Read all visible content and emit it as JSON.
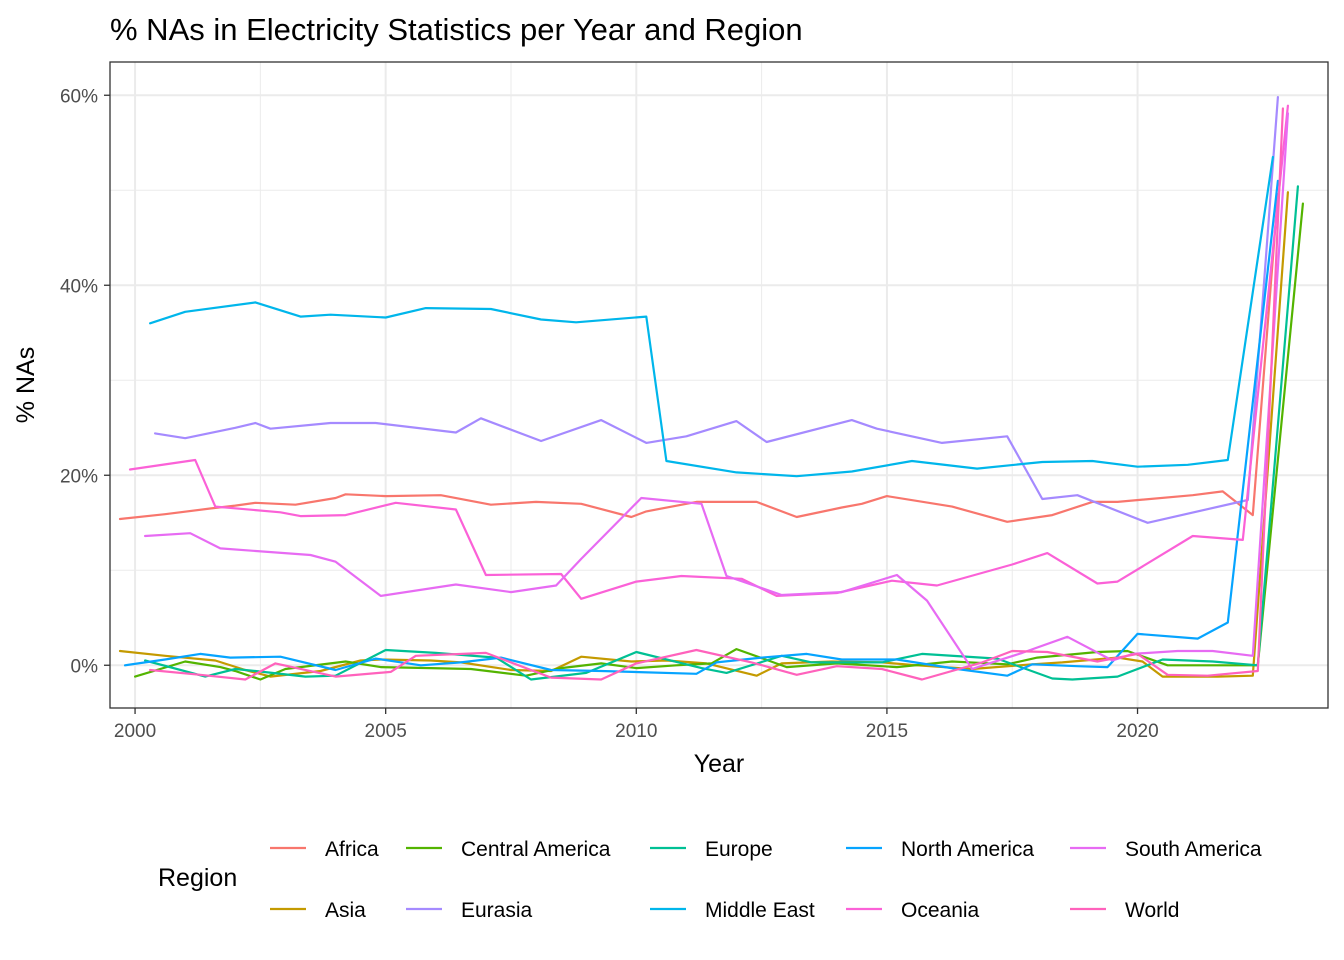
{
  "chart_data": {
    "type": "line",
    "title": "% NAs in Electricity Statistics per Year and Region",
    "xlabel": "Year",
    "ylabel": "% NAs",
    "xlim": [
      1999.5,
      2023.8
    ],
    "ylim": [
      -4.5,
      63.5
    ],
    "x_ticks": [
      2000,
      2005,
      2010,
      2015,
      2020
    ],
    "x_tick_labels": [
      "2000",
      "2005",
      "2010",
      "2015",
      "2020"
    ],
    "y_ticks": [
      0,
      20,
      40,
      60
    ],
    "y_tick_labels": [
      "0%",
      "20%",
      "40%",
      "60%"
    ],
    "grid": true,
    "legend_title": "Region",
    "legend_position": "bottom",
    "series": [
      {
        "name": "Africa",
        "color": "#F8766D",
        "points": [
          [
            1999.7,
            15.4
          ],
          [
            2000.6,
            15.9
          ],
          [
            2001.5,
            16.5
          ],
          [
            2002.0,
            16.8
          ],
          [
            2002.4,
            17.1
          ],
          [
            2003.2,
            16.9
          ],
          [
            2004.0,
            17.6
          ],
          [
            2004.2,
            18.0
          ],
          [
            2005.0,
            17.8
          ],
          [
            2006.1,
            17.9
          ],
          [
            2007.1,
            16.9
          ],
          [
            2008.0,
            17.2
          ],
          [
            2008.9,
            17.0
          ],
          [
            2009.9,
            15.6
          ],
          [
            2010.2,
            16.2
          ],
          [
            2011.2,
            17.2
          ],
          [
            2012.0,
            17.2
          ],
          [
            2012.4,
            17.2
          ],
          [
            2013.2,
            15.6
          ],
          [
            2014.1,
            16.6
          ],
          [
            2014.5,
            17.0
          ],
          [
            2015.0,
            17.8
          ],
          [
            2016.3,
            16.7
          ],
          [
            2017.4,
            15.1
          ],
          [
            2018.3,
            15.8
          ],
          [
            2019.1,
            17.2
          ],
          [
            2019.6,
            17.2
          ],
          [
            2021.1,
            17.9
          ],
          [
            2021.7,
            18.3
          ],
          [
            2022.3,
            15.8
          ],
          [
            2022.8,
            49.6
          ]
        ]
      },
      {
        "name": "Asia",
        "color": "#C49A00",
        "points": [
          [
            1999.7,
            1.5
          ],
          [
            2000.6,
            1.0
          ],
          [
            2001.6,
            0.5
          ],
          [
            2002.2,
            -0.5
          ],
          [
            2002.7,
            -1.2
          ],
          [
            2003.7,
            -0.6
          ],
          [
            2004.5,
            0.5
          ],
          [
            2004.9,
            0.6
          ],
          [
            2005.9,
            0.5
          ],
          [
            2006.5,
            0.3
          ],
          [
            2007.5,
            -0.5
          ],
          [
            2008.3,
            -0.6
          ],
          [
            2008.9,
            0.9
          ],
          [
            2009.9,
            0.4
          ],
          [
            2010.6,
            0.5
          ],
          [
            2011.4,
            0.2
          ],
          [
            2012.4,
            -1.1
          ],
          [
            2012.9,
            0.2
          ],
          [
            2013.9,
            0.4
          ],
          [
            2014.9,
            0.3
          ],
          [
            2015.6,
            0.0
          ],
          [
            2016.7,
            -0.4
          ],
          [
            2017.9,
            0.1
          ],
          [
            2018.5,
            0.3
          ],
          [
            2019.6,
            0.8
          ],
          [
            2020.1,
            0.4
          ],
          [
            2020.5,
            -1.2
          ],
          [
            2021.6,
            -1.2
          ],
          [
            2022.3,
            -1.1
          ],
          [
            2023.0,
            49.8
          ]
        ]
      },
      {
        "name": "Central America",
        "color": "#53B400",
        "points": [
          [
            2000.0,
            -1.2
          ],
          [
            2001.0,
            0.4
          ],
          [
            2001.7,
            -0.2
          ],
          [
            2002.0,
            -0.6
          ],
          [
            2002.5,
            -1.5
          ],
          [
            2003.0,
            -0.4
          ],
          [
            2004.2,
            0.4
          ],
          [
            2004.9,
            -0.2
          ],
          [
            2005.9,
            -0.3
          ],
          [
            2006.7,
            -0.4
          ],
          [
            2007.8,
            -1.1
          ],
          [
            2008.5,
            -0.3
          ],
          [
            2009.3,
            0.2
          ],
          [
            2010.0,
            -0.3
          ],
          [
            2010.8,
            0.0
          ],
          [
            2011.5,
            0.2
          ],
          [
            2012.0,
            1.7
          ],
          [
            2013.0,
            -0.2
          ],
          [
            2014.0,
            0.2
          ],
          [
            2015.2,
            -0.2
          ],
          [
            2016.3,
            0.4
          ],
          [
            2017.4,
            0.1
          ],
          [
            2018.0,
            0.8
          ],
          [
            2019.2,
            1.4
          ],
          [
            2019.8,
            1.5
          ],
          [
            2020.6,
            0.0
          ],
          [
            2021.4,
            0.0
          ],
          [
            2022.4,
            0.0
          ],
          [
            2023.3,
            48.6
          ]
        ]
      },
      {
        "name": "Eurasia",
        "color": "#A58AFF",
        "points": [
          [
            2000.4,
            24.4
          ],
          [
            2001.0,
            23.9
          ],
          [
            2002.0,
            25.0
          ],
          [
            2002.4,
            25.5
          ],
          [
            2002.7,
            24.9
          ],
          [
            2003.9,
            25.5
          ],
          [
            2004.8,
            25.5
          ],
          [
            2006.4,
            24.5
          ],
          [
            2006.9,
            26.0
          ],
          [
            2008.1,
            23.6
          ],
          [
            2009.3,
            25.8
          ],
          [
            2010.2,
            23.4
          ],
          [
            2011.0,
            24.1
          ],
          [
            2012.0,
            25.7
          ],
          [
            2012.6,
            23.5
          ],
          [
            2014.3,
            25.8
          ],
          [
            2014.8,
            24.9
          ],
          [
            2016.1,
            23.4
          ],
          [
            2017.4,
            24.1
          ],
          [
            2018.1,
            17.5
          ],
          [
            2018.8,
            17.9
          ],
          [
            2020.2,
            15.0
          ],
          [
            2022.2,
            17.4
          ],
          [
            2022.8,
            59.8
          ]
        ]
      },
      {
        "name": "Europe",
        "color": "#00C094",
        "points": [
          [
            2000.2,
            0.5
          ],
          [
            2001.4,
            -1.2
          ],
          [
            2002.0,
            -0.4
          ],
          [
            2002.4,
            -0.6
          ],
          [
            2003.4,
            -1.2
          ],
          [
            2004.0,
            -1.1
          ],
          [
            2005.0,
            1.6
          ],
          [
            2006.0,
            1.3
          ],
          [
            2007.2,
            0.8
          ],
          [
            2007.9,
            -1.5
          ],
          [
            2009.0,
            -0.8
          ],
          [
            2010.0,
            1.4
          ],
          [
            2011.3,
            -0.3
          ],
          [
            2011.8,
            -0.8
          ],
          [
            2012.9,
            1.0
          ],
          [
            2013.5,
            0.3
          ],
          [
            2014.9,
            0.3
          ],
          [
            2015.7,
            1.2
          ],
          [
            2017.2,
            0.7
          ],
          [
            2018.3,
            -1.4
          ],
          [
            2018.7,
            -1.5
          ],
          [
            2019.6,
            -1.2
          ],
          [
            2020.5,
            0.6
          ],
          [
            2021.5,
            0.4
          ],
          [
            2022.4,
            0.0
          ],
          [
            2023.2,
            50.4
          ]
        ]
      },
      {
        "name": "Middle East",
        "color": "#00B6EB",
        "points": [
          [
            2000.3,
            36.0
          ],
          [
            2001.0,
            37.2
          ],
          [
            2002.4,
            38.2
          ],
          [
            2003.3,
            36.7
          ],
          [
            2003.9,
            36.9
          ],
          [
            2005.0,
            36.6
          ],
          [
            2005.8,
            37.6
          ],
          [
            2007.1,
            37.5
          ],
          [
            2008.1,
            36.4
          ],
          [
            2008.8,
            36.1
          ],
          [
            2010.2,
            36.7
          ],
          [
            2010.6,
            21.5
          ],
          [
            2012.0,
            20.3
          ],
          [
            2013.2,
            19.9
          ],
          [
            2014.3,
            20.4
          ],
          [
            2015.5,
            21.5
          ],
          [
            2016.8,
            20.7
          ],
          [
            2018.1,
            21.4
          ],
          [
            2019.1,
            21.5
          ],
          [
            2020.0,
            20.9
          ],
          [
            2021.0,
            21.1
          ],
          [
            2021.8,
            21.6
          ],
          [
            2022.7,
            53.5
          ]
        ]
      },
      {
        "name": "North America",
        "color": "#06A4FF",
        "points": [
          [
            1999.8,
            0.0
          ],
          [
            2000.6,
            0.6
          ],
          [
            2001.3,
            1.2
          ],
          [
            2001.9,
            0.8
          ],
          [
            2002.9,
            0.9
          ],
          [
            2004.0,
            -0.5
          ],
          [
            2004.8,
            0.7
          ],
          [
            2005.7,
            0.0
          ],
          [
            2006.5,
            0.3
          ],
          [
            2007.3,
            0.8
          ],
          [
            2008.3,
            -0.5
          ],
          [
            2009.3,
            -0.6
          ],
          [
            2011.2,
            -0.9
          ],
          [
            2011.6,
            0.3
          ],
          [
            2012.5,
            0.8
          ],
          [
            2013.4,
            1.2
          ],
          [
            2014.1,
            0.6
          ],
          [
            2015.2,
            0.6
          ],
          [
            2016.4,
            -0.4
          ],
          [
            2017.4,
            -1.1
          ],
          [
            2017.9,
            0.1
          ],
          [
            2018.8,
            -0.1
          ],
          [
            2019.4,
            -0.2
          ],
          [
            2020.0,
            3.3
          ],
          [
            2021.2,
            2.8
          ],
          [
            2021.8,
            4.5
          ],
          [
            2022.8,
            51.0
          ]
        ]
      },
      {
        "name": "Oceania",
        "color": "#FB61D7",
        "points": [
          [
            1999.9,
            20.6
          ],
          [
            2001.2,
            21.6
          ],
          [
            2001.6,
            16.7
          ],
          [
            2002.9,
            16.1
          ],
          [
            2003.3,
            15.7
          ],
          [
            2004.2,
            15.8
          ],
          [
            2005.2,
            17.1
          ],
          [
            2006.4,
            16.4
          ],
          [
            2007.0,
            9.5
          ],
          [
            2008.5,
            9.6
          ],
          [
            2008.9,
            7.0
          ],
          [
            2010.0,
            8.8
          ],
          [
            2010.9,
            9.4
          ],
          [
            2012.1,
            9.1
          ],
          [
            2012.8,
            7.3
          ],
          [
            2014.0,
            7.6
          ],
          [
            2015.1,
            8.9
          ],
          [
            2016.0,
            8.4
          ],
          [
            2017.5,
            10.6
          ],
          [
            2018.2,
            11.8
          ],
          [
            2019.2,
            8.6
          ],
          [
            2019.6,
            8.8
          ],
          [
            2021.1,
            13.6
          ],
          [
            2022.1,
            13.2
          ],
          [
            2023.0,
            58.9
          ]
        ]
      },
      {
        "name": "South America",
        "color": "#E76BF3",
        "points": [
          [
            2000.2,
            13.6
          ],
          [
            2001.1,
            13.9
          ],
          [
            2001.7,
            12.3
          ],
          [
            2003.5,
            11.6
          ],
          [
            2004.0,
            10.9
          ],
          [
            2004.9,
            7.3
          ],
          [
            2006.4,
            8.5
          ],
          [
            2007.5,
            7.7
          ],
          [
            2008.4,
            8.4
          ],
          [
            2008.9,
            11.2
          ],
          [
            2010.1,
            17.6
          ],
          [
            2011.3,
            17.0
          ],
          [
            2011.8,
            9.4
          ],
          [
            2012.9,
            7.4
          ],
          [
            2014.1,
            7.7
          ],
          [
            2015.2,
            9.5
          ],
          [
            2015.8,
            6.8
          ],
          [
            2016.7,
            -0.4
          ],
          [
            2017.1,
            0.3
          ],
          [
            2017.7,
            1.3
          ],
          [
            2018.6,
            3.0
          ],
          [
            2019.5,
            0.5
          ],
          [
            2019.9,
            1.2
          ],
          [
            2020.8,
            1.5
          ],
          [
            2021.5,
            1.5
          ],
          [
            2022.3,
            1.0
          ],
          [
            2023.0,
            58.1
          ]
        ]
      },
      {
        "name": "World",
        "color": "#FF62BC",
        "points": [
          [
            2000.3,
            -0.5
          ],
          [
            2001.3,
            -1.0
          ],
          [
            2002.2,
            -1.5
          ],
          [
            2002.8,
            0.2
          ],
          [
            2004.0,
            -1.2
          ],
          [
            2005.1,
            -0.7
          ],
          [
            2005.6,
            1.0
          ],
          [
            2007.0,
            1.3
          ],
          [
            2008.3,
            -1.3
          ],
          [
            2009.3,
            -1.5
          ],
          [
            2010.0,
            0.2
          ],
          [
            2011.2,
            1.6
          ],
          [
            2012.3,
            0.3
          ],
          [
            2013.2,
            -1.0
          ],
          [
            2014.0,
            -0.1
          ],
          [
            2014.9,
            -0.4
          ],
          [
            2015.7,
            -1.5
          ],
          [
            2016.9,
            0.3
          ],
          [
            2017.5,
            1.5
          ],
          [
            2018.2,
            1.4
          ],
          [
            2019.2,
            0.4
          ],
          [
            2020.0,
            1.2
          ],
          [
            2020.6,
            -1.0
          ],
          [
            2021.4,
            -1.1
          ],
          [
            2022.4,
            -0.6
          ],
          [
            2022.9,
            58.6
          ]
        ]
      }
    ]
  }
}
